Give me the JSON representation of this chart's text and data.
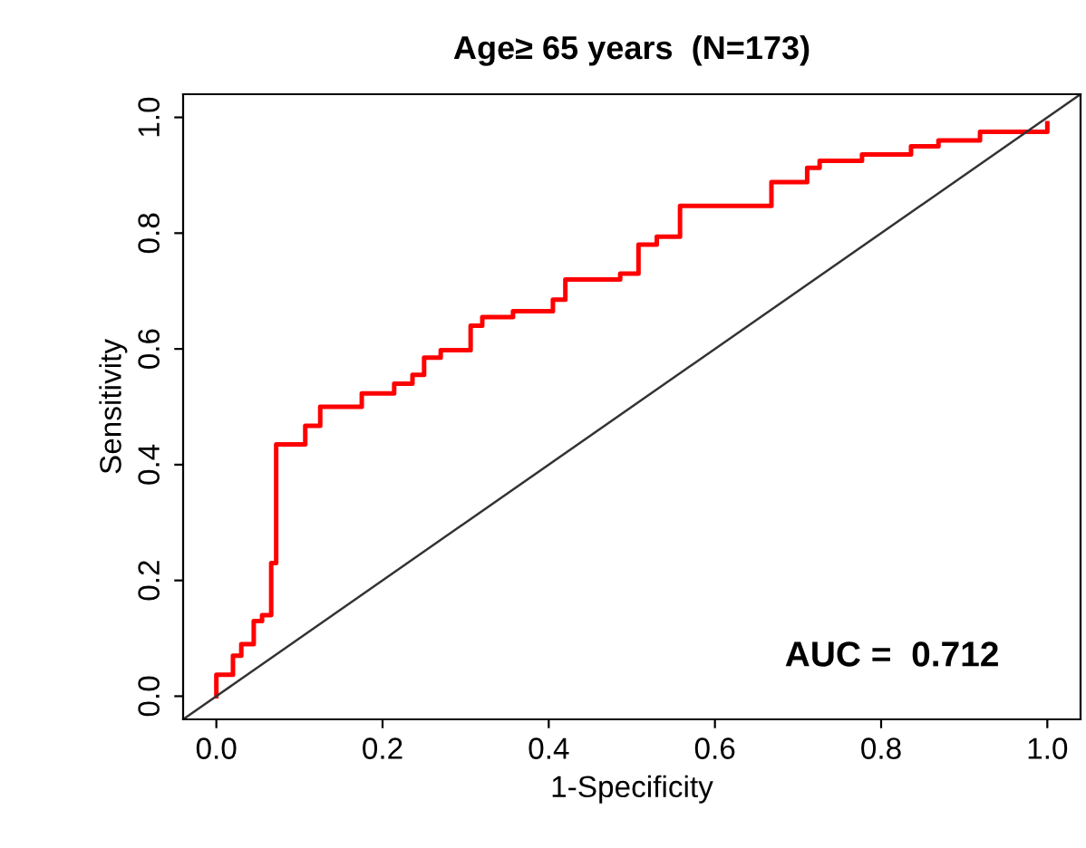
{
  "chart_data": {
    "type": "line",
    "title": "Age≥ 65 years  (N=173)",
    "xlabel": "1-Specificity",
    "ylabel": "Sensitivity",
    "xlim": [
      -0.04,
      1.04
    ],
    "ylim": [
      -0.04,
      1.04
    ],
    "xticks": [
      {
        "value": 0,
        "label": "0.0"
      },
      0.2,
      0.4,
      0.6,
      0.8,
      {
        "value": 1,
        "label": "1.0"
      }
    ],
    "yticks": [
      {
        "value": 0,
        "label": "0.0"
      },
      0.2,
      0.4,
      0.6,
      0.8,
      {
        "value": 1,
        "label": "1.0"
      }
    ],
    "grid": false,
    "legend": false,
    "marker": "none",
    "line_style": "solid",
    "annotations": [
      "AUC =  0.712"
    ],
    "series": [
      {
        "color": "#ff0000",
        "x": [
          0,
          0,
          0.02,
          0.02,
          0.03,
          0.03,
          0.045,
          0.045,
          0.055,
          0.055,
          0.066,
          0.066,
          0.072,
          0.072,
          0.107,
          0.107,
          0.125,
          0.125,
          0.175,
          0.175,
          0.214,
          0.214,
          0.236,
          0.236,
          0.25,
          0.25,
          0.27,
          0.27,
          0.306,
          0.306,
          0.32,
          0.32,
          0.357,
          0.357,
          0.405,
          0.405,
          0.42,
          0.42,
          0.486,
          0.486,
          0.508,
          0.508,
          0.53,
          0.53,
          0.558,
          0.558,
          0.668,
          0.668,
          0.711,
          0.711,
          0.726,
          0.726,
          0.777,
          0.777,
          0.836,
          0.836,
          0.869,
          0.869,
          0.919,
          0.919,
          1.0,
          1.0
        ],
        "values": [
          0,
          0.037,
          0.037,
          0.07,
          0.07,
          0.09,
          0.09,
          0.13,
          0.13,
          0.14,
          0.14,
          0.23,
          0.23,
          0.435,
          0.435,
          0.467,
          0.467,
          0.5,
          0.5,
          0.523,
          0.523,
          0.54,
          0.54,
          0.555,
          0.555,
          0.585,
          0.585,
          0.598,
          0.598,
          0.64,
          0.64,
          0.655,
          0.655,
          0.665,
          0.665,
          0.685,
          0.685,
          0.72,
          0.72,
          0.73,
          0.73,
          0.78,
          0.78,
          0.794,
          0.794,
          0.847,
          0.847,
          0.888,
          0.888,
          0.913,
          0.913,
          0.925,
          0.925,
          0.936,
          0.936,
          0.95,
          0.95,
          0.96,
          0.96,
          0.975,
          0.975,
          0.99
        ]
      },
      {
        "color": "#333333",
        "x": [
          -0.04,
          1.04
        ],
        "values": [
          -0.04,
          1.04
        ]
      }
    ]
  }
}
